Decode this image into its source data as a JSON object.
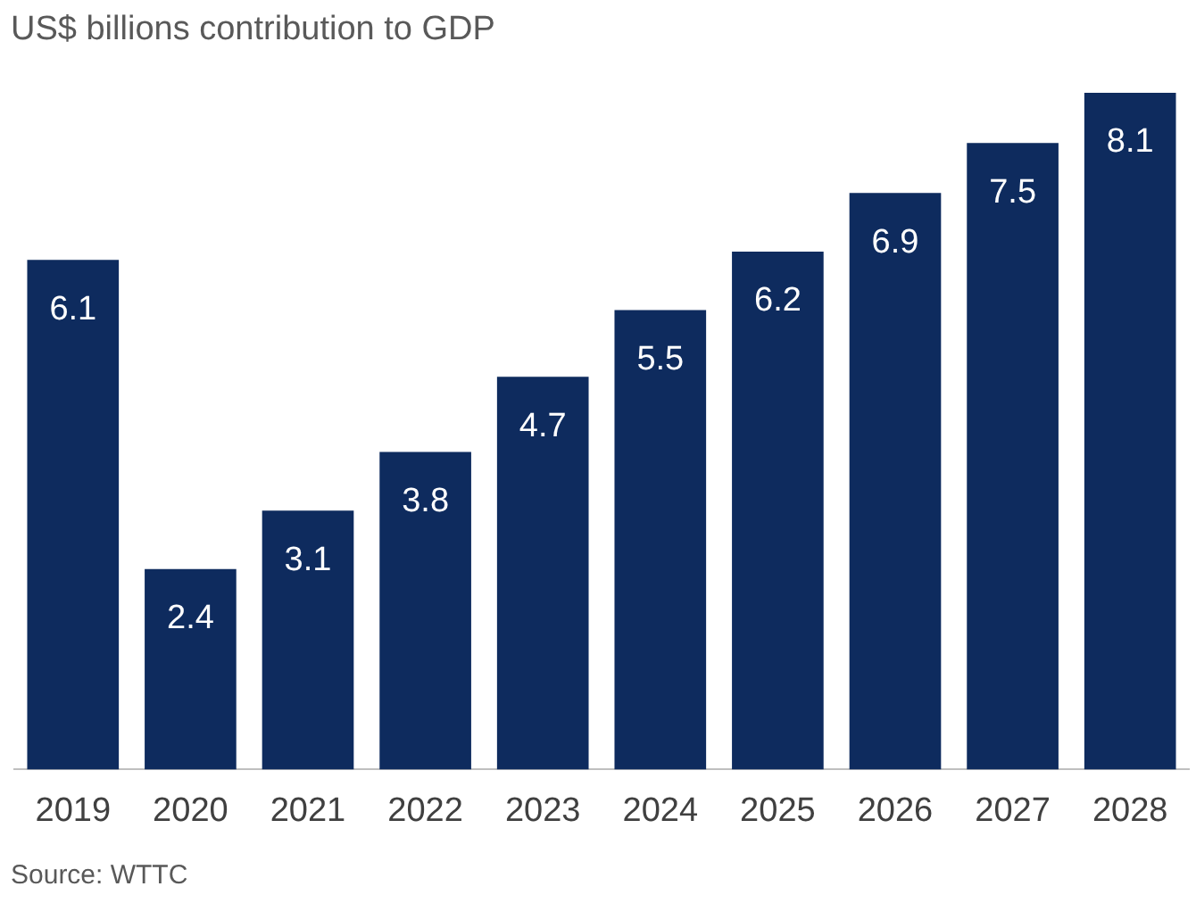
{
  "chart_data": {
    "type": "bar",
    "title": "US$ billions contribution to GDP",
    "categories": [
      "2019",
      "2020",
      "2021",
      "2022",
      "2023",
      "2024",
      "2025",
      "2026",
      "2027",
      "2028"
    ],
    "values": [
      6.1,
      2.4,
      3.1,
      3.8,
      4.7,
      5.5,
      6.2,
      6.9,
      7.5,
      8.1
    ],
    "color": "#0e2b5e",
    "tick_labels": "x",
    "data_labels": true,
    "grid": false,
    "legend": false,
    "annotations": [
      "Source: WTTC"
    ]
  }
}
